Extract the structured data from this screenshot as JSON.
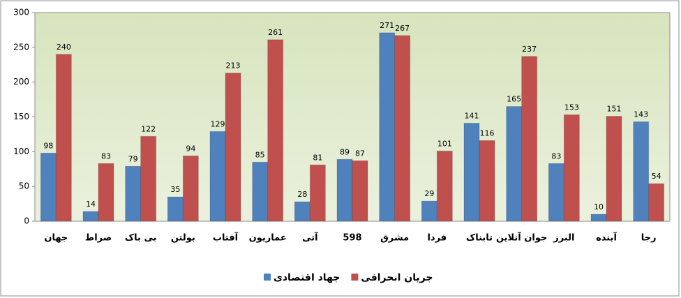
{
  "chart_data": {
    "type": "bar",
    "categories": [
      "جهان",
      "صراط",
      "بی باک",
      "بولتن",
      "آفتاب",
      "عماریون",
      "آتی",
      "598",
      "مشرق",
      "فردا",
      "تابناک",
      "جوان آنلاین",
      "البرز",
      "آینده",
      "رجا"
    ],
    "series": [
      {
        "name": "جهاد اقتصادی",
        "color": "#4f81bd",
        "values": [
          98,
          14,
          79,
          35,
          129,
          85,
          28,
          89,
          271,
          29,
          141,
          165,
          83,
          10,
          143
        ]
      },
      {
        "name": "جریان انحرافی",
        "color": "#c0504d",
        "values": [
          240,
          83,
          122,
          94,
          213,
          261,
          81,
          87,
          267,
          101,
          116,
          237,
          153,
          151,
          54
        ]
      }
    ],
    "ylim": [
      0,
      300
    ],
    "yticks": [
      0,
      50,
      100,
      150,
      200,
      250,
      300
    ],
    "grid": false
  }
}
